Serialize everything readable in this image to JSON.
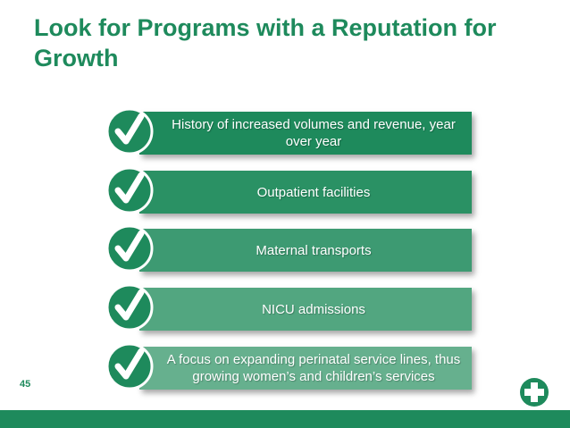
{
  "slide": {
    "title": "Look for Programs with a Reputation for Growth",
    "page_number": "45",
    "items": [
      {
        "text": "History of increased volumes and revenue, year over year",
        "color": "#1e8a5c"
      },
      {
        "text": "Outpatient facilities",
        "color": "#2a9164"
      },
      {
        "text": "Maternal transports",
        "color": "#3d9a72"
      },
      {
        "text": "NICU admissions",
        "color": "#52a680"
      },
      {
        "text": "A focus on expanding perinatal service lines, thus growing women’s and children’s services",
        "color": "#66b08e"
      }
    ]
  },
  "icons": {
    "check": "checkmark-circle-icon",
    "logo": "medical-cross-logo"
  },
  "colors": {
    "brand_green": "#1e8a5c",
    "footer": "#1e8a5c"
  }
}
